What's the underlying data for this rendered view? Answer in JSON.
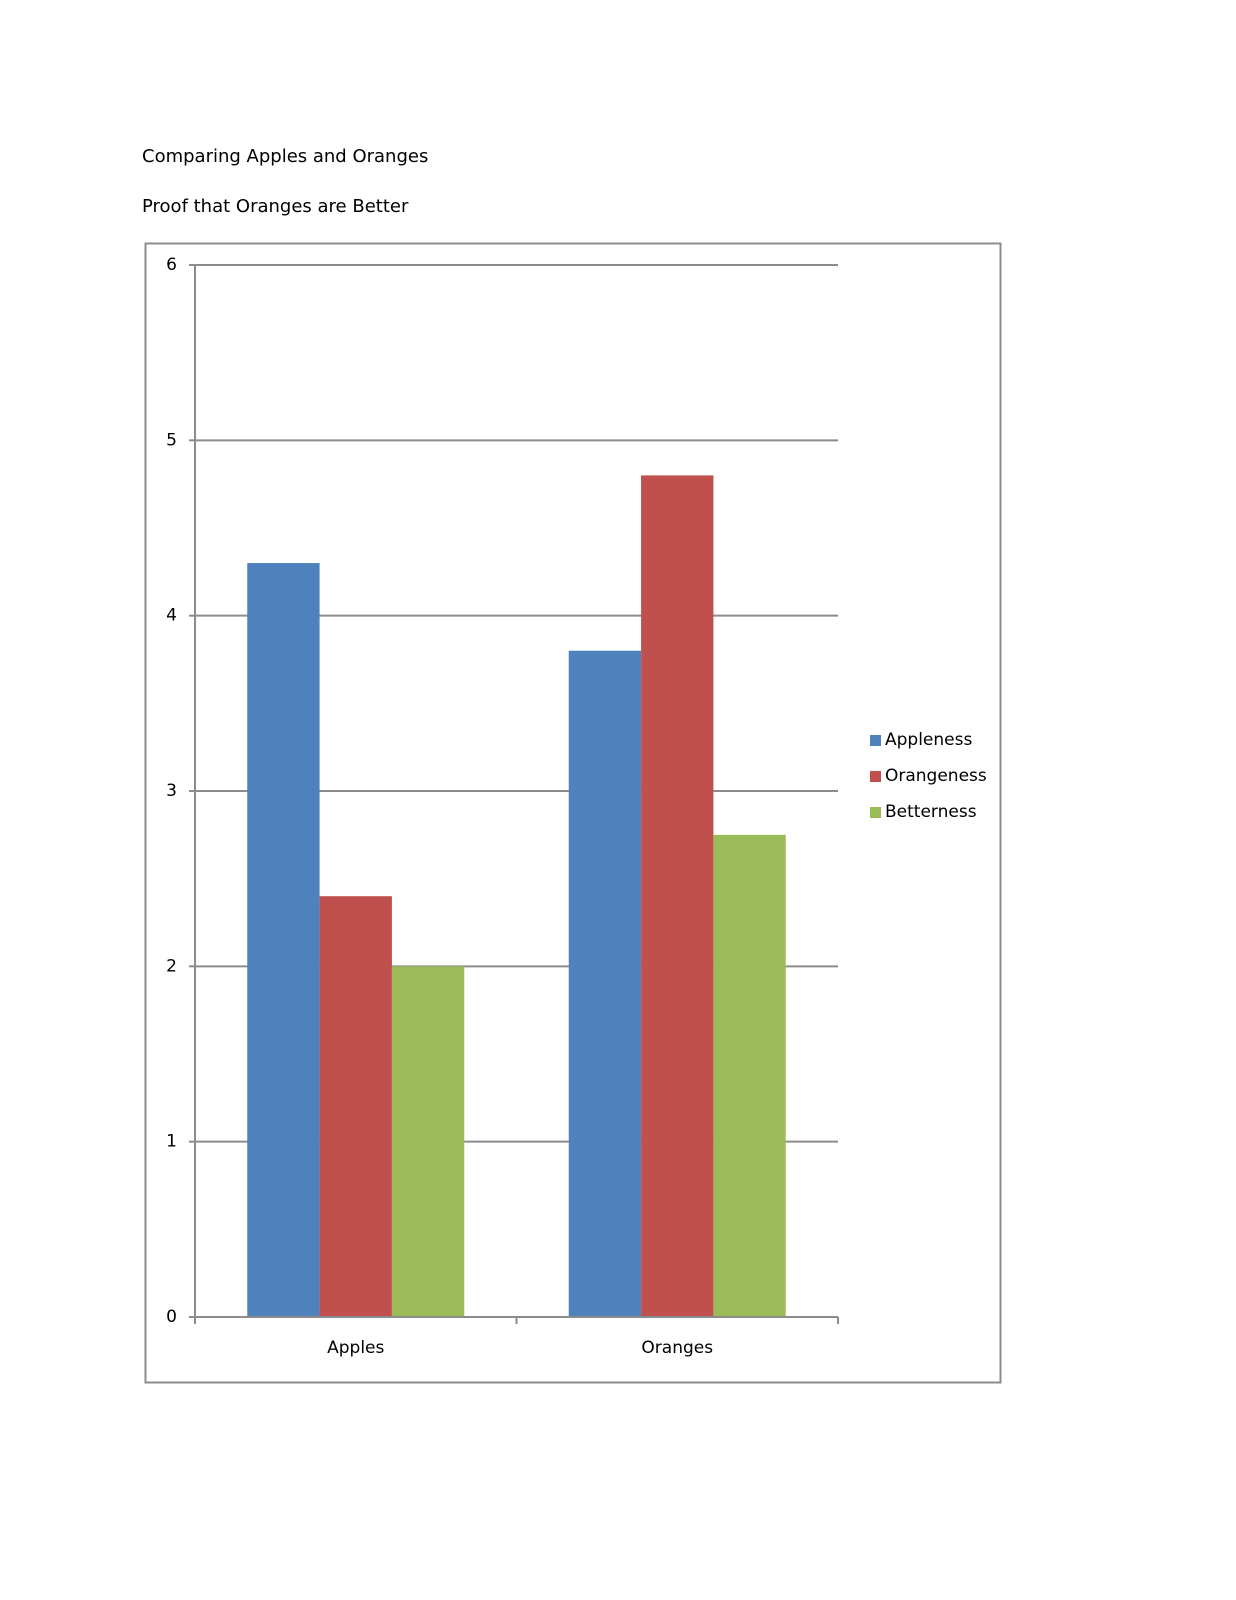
{
  "chart_data": {
    "type": "bar",
    "title": "Comparing Apples and Oranges",
    "subtitle": "Proof that Oranges are Better",
    "categories": [
      "Apples",
      "Oranges"
    ],
    "series": [
      {
        "name": "Appleness",
        "color": "#4f81bd",
        "values": [
          4.3,
          3.8
        ]
      },
      {
        "name": "Orangeness",
        "color": "#c0504d",
        "values": [
          2.4,
          4.8
        ]
      },
      {
        "name": "Betterness",
        "color": "#9bbb59",
        "values": [
          2.0,
          2.75
        ]
      }
    ],
    "ylim": [
      0,
      6
    ],
    "yticks": [
      0,
      1,
      2,
      3,
      4,
      5,
      6
    ],
    "grid": true,
    "legend": "right"
  }
}
